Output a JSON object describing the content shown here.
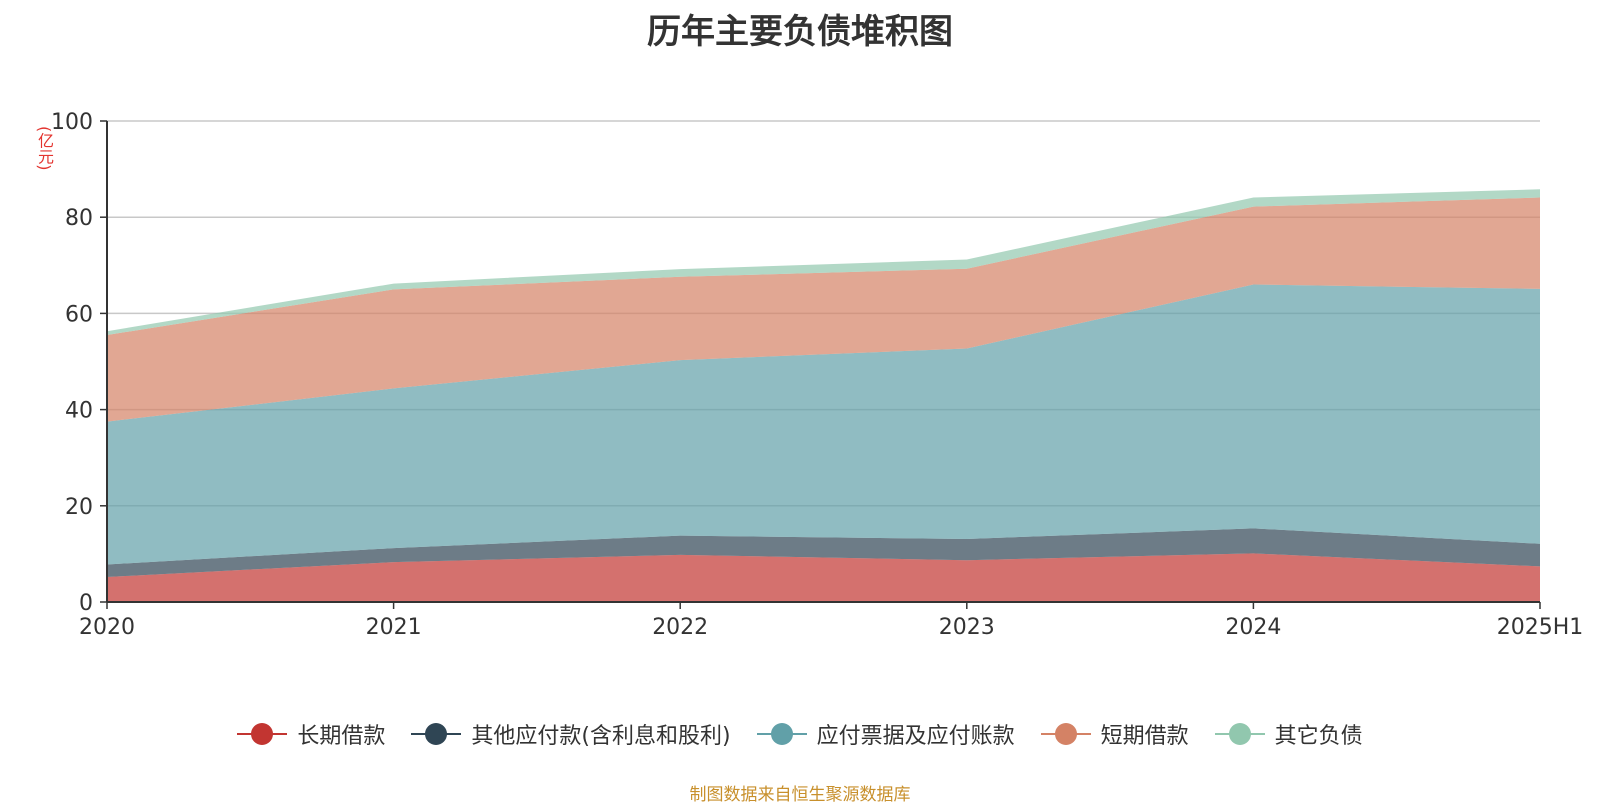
{
  "title": "历年主要负债堆积图",
  "y_unit": "(亿元)",
  "source": "制图数据来自恒生聚源数据库",
  "chart_data": {
    "type": "area",
    "stacked": true,
    "x": [
      "2020",
      "2021",
      "2022",
      "2023",
      "2024",
      "2025H1"
    ],
    "ylim": [
      0,
      100
    ],
    "yticks": [
      0,
      20,
      40,
      60,
      80,
      100
    ],
    "grid": true,
    "legend_position": "bottom",
    "series": [
      {
        "name": "长期借款",
        "color": "#c23531",
        "values": [
          5.2,
          8.3,
          9.8,
          8.7,
          10.1,
          7.4
        ]
      },
      {
        "name": "其他应付款(含利息和股利)",
        "color": "#2f4554",
        "values": [
          2.6,
          2.9,
          4.0,
          4.4,
          5.2,
          4.7
        ]
      },
      {
        "name": "应付票据及应付账款",
        "color": "#61a0a8",
        "values": [
          29.7,
          33.2,
          36.5,
          39.6,
          50.7,
          53.0
        ]
      },
      {
        "name": "短期借款",
        "color": "#d48265",
        "values": [
          18.0,
          20.6,
          17.3,
          16.6,
          16.2,
          19.0
        ]
      },
      {
        "name": "其它负债",
        "color": "#91c7ae",
        "values": [
          0.8,
          1.2,
          1.6,
          1.9,
          1.9,
          1.7
        ]
      }
    ]
  }
}
